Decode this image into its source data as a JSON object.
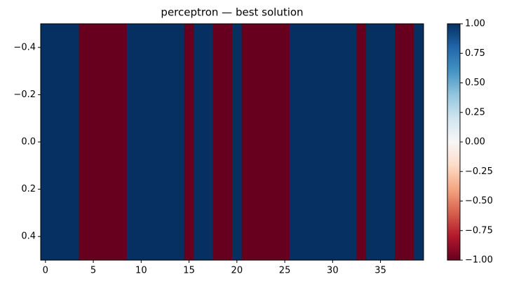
{
  "chart_data": {
    "type": "heatmap",
    "title": "perceptron — best solution",
    "values": [
      [
        1,
        1,
        1,
        1,
        -1,
        -1,
        -1,
        -1,
        -1,
        1,
        1,
        1,
        1,
        1,
        1,
        -1,
        1,
        1,
        -1,
        -1,
        1,
        -1,
        -1,
        -1,
        -1,
        -1,
        1,
        1,
        1,
        1,
        1,
        1,
        1,
        -1,
        1,
        1,
        1,
        -1,
        -1,
        1
      ]
    ],
    "colormap": "RdBu",
    "clim": [
      -1,
      1
    ],
    "xlim": [
      -0.5,
      39.5
    ],
    "xticks": [
      0,
      5,
      10,
      15,
      20,
      25,
      30,
      35
    ],
    "ylim": [
      -0.5,
      0.5
    ],
    "yticks": [
      {
        "value": -0.4,
        "label": "−0.4"
      },
      {
        "value": -0.2,
        "label": "−0.2"
      },
      {
        "value": 0,
        "label": "0.0"
      },
      0.2,
      0.4
    ],
    "colorbar_ticks": [
      {
        "value": 1,
        "label": "1.00"
      },
      {
        "value": 0.75,
        "label": "0.75"
      },
      {
        "value": 0.5,
        "label": "0.50"
      },
      {
        "value": 0.25,
        "label": "0.25"
      },
      {
        "value": 0,
        "label": "0.00"
      },
      {
        "value": -0.25,
        "label": "−0.25"
      },
      {
        "value": -0.5,
        "label": "−0.50"
      },
      {
        "value": -0.75,
        "label": "−0.75"
      },
      {
        "value": -1,
        "label": "−1.00"
      }
    ]
  }
}
